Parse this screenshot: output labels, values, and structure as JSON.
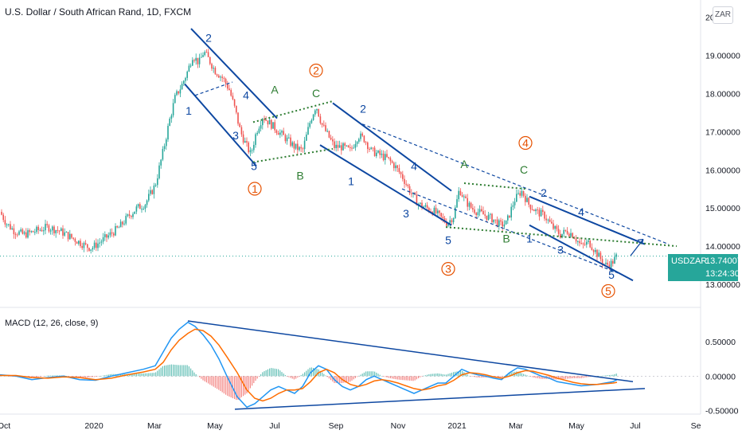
{
  "header": {
    "title": "U.S. Dollar / South African Rand, 1D, FXCM",
    "currency_badge": "ZAR"
  },
  "price_tag": {
    "symbol": "USDZAR",
    "value": "13.74007",
    "countdown": "13:24:30"
  },
  "macd_title": "MACD (12, 26, close, 9)",
  "colors": {
    "up": "#26a69a",
    "down": "#ef5350",
    "blue_line": "#0d47a1",
    "green": "#2e7d32",
    "orange": "#e65100",
    "macd": "#2196f3",
    "signal": "#ff6d00"
  },
  "chart_data": [
    {
      "type": "candlestick",
      "title": "U.S. Dollar / South African Rand, 1D, FXCM",
      "x_ticks": [
        "Oct",
        "2020",
        "Mar",
        "May",
        "Jul",
        "Sep",
        "Nov",
        "2021",
        "Mar",
        "May",
        "Jul",
        "Se"
      ],
      "y_ticks": [
        "13.00000",
        "14.00000",
        "15.00000",
        "16.00000",
        "17.00000",
        "18.00000",
        "19.00000",
        "20"
      ],
      "ylim": [
        12.5,
        20.2
      ],
      "last_price": 13.74007,
      "path": [
        [
          0,
          14.9
        ],
        [
          8,
          14.6
        ],
        [
          18,
          14.4
        ],
        [
          30,
          14.3
        ],
        [
          45,
          14.4
        ],
        [
          60,
          14.5
        ],
        [
          75,
          14.4
        ],
        [
          92,
          14.2
        ],
        [
          100,
          14.1
        ],
        [
          108,
          14.0
        ],
        [
          115,
          13.95
        ],
        [
          125,
          14.1
        ],
        [
          138,
          14.3
        ],
        [
          150,
          14.5
        ],
        [
          162,
          14.8
        ],
        [
          172,
          15.0
        ],
        [
          182,
          15.1
        ],
        [
          195,
          15.6
        ],
        [
          205,
          16.5
        ],
        [
          213,
          17.3
        ],
        [
          220,
          17.9
        ],
        [
          228,
          18.2
        ],
        [
          236,
          18.6
        ],
        [
          242,
          19.0
        ],
        [
          250,
          18.8
        ],
        [
          256,
          19.1
        ],
        [
          262,
          18.9
        ],
        [
          270,
          18.6
        ],
        [
          280,
          18.4
        ],
        [
          288,
          18.1
        ],
        [
          295,
          17.6
        ],
        [
          302,
          17.0
        ],
        [
          308,
          16.7
        ],
        [
          315,
          16.4
        ],
        [
          322,
          17.0
        ],
        [
          330,
          17.4
        ],
        [
          340,
          17.2
        ],
        [
          350,
          17.0
        ],
        [
          360,
          16.8
        ],
        [
          370,
          16.6
        ],
        [
          380,
          16.5
        ],
        [
          390,
          17.3
        ],
        [
          397,
          17.7
        ],
        [
          404,
          17.2
        ],
        [
          412,
          16.9
        ],
        [
          420,
          16.6
        ],
        [
          430,
          16.6
        ],
        [
          440,
          16.5
        ],
        [
          450,
          16.9
        ],
        [
          458,
          16.8
        ],
        [
          466,
          16.5
        ],
        [
          476,
          16.4
        ],
        [
          486,
          16.3
        ],
        [
          496,
          16.1
        ],
        [
          506,
          15.8
        ],
        [
          516,
          15.4
        ],
        [
          526,
          15.1
        ],
        [
          536,
          15.0
        ],
        [
          546,
          14.9
        ],
        [
          556,
          14.7
        ],
        [
          562,
          14.6
        ],
        [
          570,
          14.8
        ],
        [
          577,
          15.5
        ],
        [
          584,
          15.2
        ],
        [
          592,
          15.0
        ],
        [
          600,
          14.9
        ],
        [
          610,
          14.8
        ],
        [
          620,
          14.7
        ],
        [
          628,
          14.55
        ],
        [
          636,
          14.6
        ],
        [
          646,
          15.2
        ],
        [
          655,
          15.45
        ],
        [
          664,
          15.1
        ],
        [
          674,
          14.9
        ],
        [
          684,
          14.8
        ],
        [
          694,
          14.5
        ],
        [
          704,
          14.3
        ],
        [
          712,
          14.4
        ],
        [
          720,
          14.3
        ],
        [
          730,
          14.0
        ],
        [
          740,
          14.1
        ],
        [
          750,
          13.8
        ],
        [
          760,
          13.5
        ],
        [
          768,
          13.55
        ],
        [
          775,
          13.74
        ]
      ]
    },
    {
      "type": "line",
      "title": "MACD (12, 26, close, 9)",
      "y_ticks": [
        "0.50000",
        "0.00000",
        "-0.50000"
      ],
      "ylim": [
        -0.55,
        0.95
      ],
      "series": [
        {
          "name": "MACD",
          "points": [
            [
              0,
              0.02
            ],
            [
              20,
              0.0
            ],
            [
              40,
              -0.05
            ],
            [
              60,
              -0.02
            ],
            [
              80,
              0.0
            ],
            [
              100,
              -0.05
            ],
            [
              120,
              -0.06
            ],
            [
              140,
              0.0
            ],
            [
              160,
              0.05
            ],
            [
              180,
              0.1
            ],
            [
              195,
              0.15
            ],
            [
              205,
              0.35
            ],
            [
              215,
              0.55
            ],
            [
              225,
              0.68
            ],
            [
              236,
              0.78
            ],
            [
              245,
              0.72
            ],
            [
              255,
              0.6
            ],
            [
              265,
              0.45
            ],
            [
              275,
              0.25
            ],
            [
              285,
              0.0
            ],
            [
              298,
              -0.3
            ],
            [
              310,
              -0.45
            ],
            [
              320,
              -0.4
            ],
            [
              330,
              -0.3
            ],
            [
              340,
              -0.2
            ],
            [
              350,
              -0.15
            ],
            [
              360,
              -0.2
            ],
            [
              370,
              -0.25
            ],
            [
              380,
              -0.15
            ],
            [
              390,
              0.05
            ],
            [
              400,
              0.15
            ],
            [
              410,
              0.1
            ],
            [
              420,
              -0.05
            ],
            [
              430,
              -0.15
            ],
            [
              440,
              -0.2
            ],
            [
              450,
              -0.15
            ],
            [
              460,
              -0.05
            ],
            [
              470,
              0.0
            ],
            [
              480,
              -0.05
            ],
            [
              490,
              -0.1
            ],
            [
              500,
              -0.15
            ],
            [
              510,
              -0.2
            ],
            [
              520,
              -0.25
            ],
            [
              530,
              -0.2
            ],
            [
              540,
              -0.15
            ],
            [
              550,
              -0.1
            ],
            [
              560,
              -0.1
            ],
            [
              570,
              0.0
            ],
            [
              580,
              0.1
            ],
            [
              590,
              0.05
            ],
            [
              600,
              0.02
            ],
            [
              610,
              0.0
            ],
            [
              620,
              -0.03
            ],
            [
              630,
              -0.05
            ],
            [
              640,
              0.05
            ],
            [
              650,
              0.12
            ],
            [
              660,
              0.1
            ],
            [
              670,
              0.05
            ],
            [
              680,
              0.0
            ],
            [
              690,
              -0.03
            ],
            [
              700,
              -0.08
            ],
            [
              710,
              -0.1
            ],
            [
              720,
              -0.12
            ],
            [
              730,
              -0.14
            ],
            [
              740,
              -0.13
            ],
            [
              750,
              -0.12
            ],
            [
              760,
              -0.1
            ],
            [
              770,
              -0.08
            ],
            [
              775,
              -0.05
            ]
          ]
        },
        {
          "name": "Signal",
          "points": [
            [
              0,
              0.01
            ],
            [
              20,
              0.01
            ],
            [
              40,
              -0.02
            ],
            [
              60,
              -0.03
            ],
            [
              80,
              -0.01
            ],
            [
              100,
              -0.02
            ],
            [
              120,
              -0.05
            ],
            [
              140,
              -0.03
            ],
            [
              160,
              0.02
            ],
            [
              180,
              0.06
            ],
            [
              195,
              0.1
            ],
            [
              205,
              0.2
            ],
            [
              215,
              0.38
            ],
            [
              225,
              0.52
            ],
            [
              236,
              0.62
            ],
            [
              245,
              0.68
            ],
            [
              255,
              0.66
            ],
            [
              265,
              0.58
            ],
            [
              275,
              0.45
            ],
            [
              285,
              0.28
            ],
            [
              298,
              0.05
            ],
            [
              310,
              -0.2
            ],
            [
              320,
              -0.32
            ],
            [
              330,
              -0.36
            ],
            [
              340,
              -0.32
            ],
            [
              350,
              -0.25
            ],
            [
              360,
              -0.2
            ],
            [
              370,
              -0.2
            ],
            [
              380,
              -0.18
            ],
            [
              390,
              -0.08
            ],
            [
              400,
              0.05
            ],
            [
              410,
              0.1
            ],
            [
              420,
              0.05
            ],
            [
              430,
              -0.05
            ],
            [
              440,
              -0.12
            ],
            [
              450,
              -0.15
            ],
            [
              460,
              -0.12
            ],
            [
              470,
              -0.07
            ],
            [
              480,
              -0.05
            ],
            [
              490,
              -0.07
            ],
            [
              500,
              -0.1
            ],
            [
              510,
              -0.14
            ],
            [
              520,
              -0.18
            ],
            [
              530,
              -0.2
            ],
            [
              540,
              -0.18
            ],
            [
              550,
              -0.14
            ],
            [
              560,
              -0.12
            ],
            [
              570,
              -0.06
            ],
            [
              580,
              0.02
            ],
            [
              590,
              0.05
            ],
            [
              600,
              0.04
            ],
            [
              610,
              0.02
            ],
            [
              620,
              -0.01
            ],
            [
              630,
              -0.03
            ],
            [
              640,
              0.0
            ],
            [
              650,
              0.05
            ],
            [
              660,
              0.08
            ],
            [
              670,
              0.07
            ],
            [
              680,
              0.04
            ],
            [
              690,
              0.01
            ],
            [
              700,
              -0.03
            ],
            [
              710,
              -0.06
            ],
            [
              720,
              -0.09
            ],
            [
              730,
              -0.11
            ],
            [
              740,
              -0.12
            ],
            [
              750,
              -0.12
            ],
            [
              760,
              -0.11
            ],
            [
              770,
              -0.1
            ],
            [
              775,
              -0.09
            ]
          ]
        }
      ]
    }
  ],
  "wave_labels": [
    {
      "text": "2",
      "color": "blue",
      "price": 19.35,
      "x": 262
    },
    {
      "text": "1",
      "color": "blue",
      "price": 17.45,
      "x": 237
    },
    {
      "text": "3",
      "color": "blue",
      "price": 16.8,
      "x": 296
    },
    {
      "text": "4",
      "color": "blue",
      "price": 17.85,
      "x": 309
    },
    {
      "text": "5",
      "color": "blue",
      "price": 16.0,
      "x": 319
    },
    {
      "text": "1",
      "color": "orange",
      "price": 15.4,
      "x": 320,
      "circled": true
    },
    {
      "text": "A",
      "color": "green",
      "price": 18.0,
      "x": 345
    },
    {
      "text": "B",
      "color": "green",
      "price": 15.75,
      "x": 377
    },
    {
      "text": "C",
      "color": "green",
      "price": 17.9,
      "x": 397
    },
    {
      "text": "2",
      "color": "orange",
      "price": 18.5,
      "x": 397,
      "circled": true
    },
    {
      "text": "2",
      "color": "blue",
      "price": 17.5,
      "x": 456
    },
    {
      "text": "1",
      "color": "blue",
      "price": 15.6,
      "x": 441
    },
    {
      "text": "4",
      "color": "blue",
      "price": 16.0,
      "x": 520
    },
    {
      "text": "3",
      "color": "blue",
      "price": 14.75,
      "x": 510
    },
    {
      "text": "5",
      "color": "blue",
      "price": 14.05,
      "x": 563
    },
    {
      "text": "3",
      "color": "orange",
      "price": 13.3,
      "x": 563,
      "circled": true
    },
    {
      "text": "A",
      "color": "green",
      "price": 16.05,
      "x": 583
    },
    {
      "text": "B",
      "color": "green",
      "price": 14.1,
      "x": 636
    },
    {
      "text": "C",
      "color": "green",
      "price": 15.9,
      "x": 658
    },
    {
      "text": "4",
      "color": "orange",
      "price": 16.6,
      "x": 660,
      "circled": true
    },
    {
      "text": "2",
      "color": "blue",
      "price": 15.3,
      "x": 683
    },
    {
      "text": "1",
      "color": "blue",
      "price": 14.1,
      "x": 665
    },
    {
      "text": "4",
      "color": "blue",
      "price": 14.8,
      "x": 730
    },
    {
      "text": "3",
      "color": "blue",
      "price": 13.8,
      "x": 704
    },
    {
      "text": "5",
      "color": "blue",
      "price": 13.15,
      "x": 768
    },
    {
      "text": "5",
      "color": "orange",
      "price": 12.72,
      "x": 764,
      "circled": true
    }
  ]
}
